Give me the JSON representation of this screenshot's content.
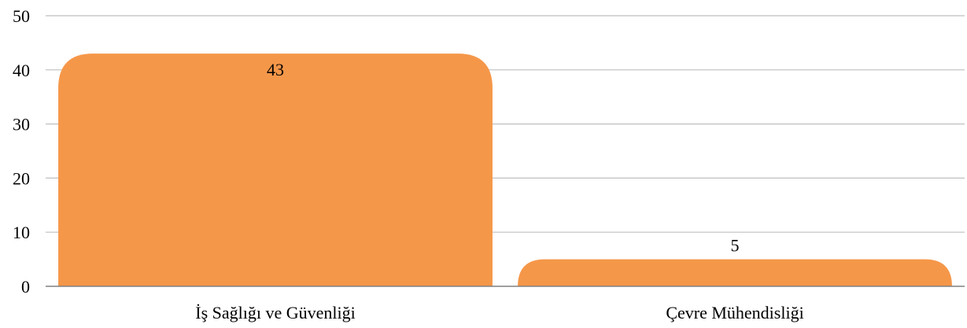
{
  "chart_data": {
    "type": "bar",
    "title": "",
    "xlabel": "",
    "ylabel": "",
    "categories": [
      "İş Sağlığı ve Güvenliği",
      "Çevre Mühendisliği"
    ],
    "values": [
      43,
      5
    ],
    "data_labels": [
      "43",
      "5"
    ],
    "ylim": [
      0,
      50
    ],
    "yticks": [
      0,
      10,
      20,
      30,
      40,
      50
    ],
    "ytick_labels": [
      "0",
      "10",
      "20",
      "30",
      "40",
      "50"
    ],
    "grid": true,
    "legend": "none",
    "colors": {
      "bar": "#F59749",
      "grid": "#BFBFBF",
      "axis": "#808080",
      "text": "#000000"
    }
  }
}
